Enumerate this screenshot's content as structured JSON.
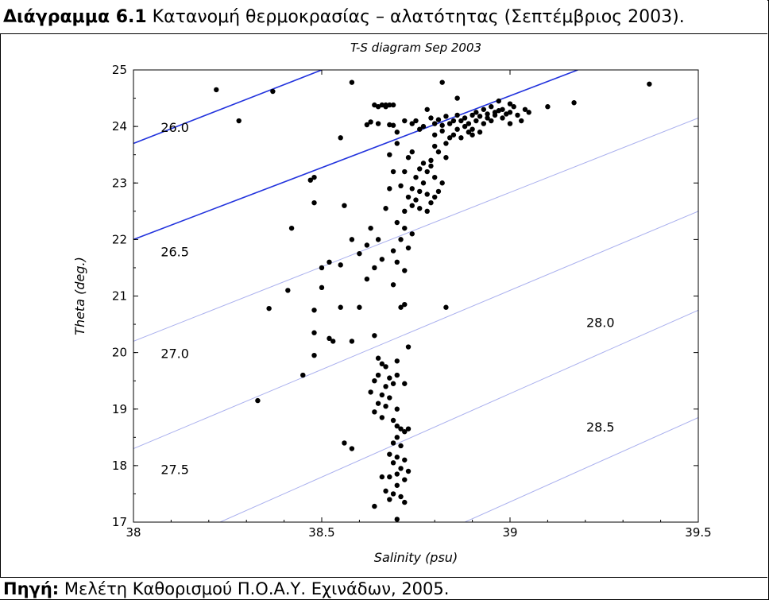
{
  "caption": {
    "label": "Διάγραμμα 6.1",
    "text": " Κατανομή θερμοκρασίας – αλατότητας (Σεπτέμβριος 2003)."
  },
  "source": {
    "label": "Πηγή:",
    "text": " Μελέτη Καθορισμού Π.Ο.Α.Υ. Εχινάδων, 2005."
  },
  "chart_data": {
    "type": "scatter",
    "title": "T-S diagram Sep 2003",
    "xlabel": "Salinity (psu)",
    "ylabel": "Theta (deg.)",
    "xlim": [
      38,
      39.5
    ],
    "ylim": [
      17,
      25
    ],
    "x_ticks": [
      38,
      38.5,
      39,
      39.5
    ],
    "x_tick_labels": [
      "38",
      "38.5",
      "39",
      "39.5"
    ],
    "y_ticks": [
      17,
      18,
      19,
      20,
      21,
      22,
      23,
      24,
      25
    ],
    "y_tick_labels": [
      "17",
      "18",
      "19",
      "20",
      "21",
      "22",
      "23",
      "24",
      "25"
    ],
    "grid": false,
    "point_color": "#000000",
    "density_color_highlight": "#2233dd",
    "density_color_light": "#aab0ee",
    "isopycnals": [
      {
        "label": "26.0",
        "line": [
          [
            38.0,
            23.7
          ],
          [
            38.5,
            25.0
          ]
        ],
        "label_at": [
          38.11,
          23.9
        ],
        "highlight": true
      },
      {
        "label": "26.5",
        "line": [
          [
            38.0,
            22.0
          ],
          [
            39.18,
            25.0
          ]
        ],
        "label_at": [
          38.11,
          21.7
        ],
        "highlight": true
      },
      {
        "label": "27.0",
        "line": [
          [
            38.0,
            20.2
          ],
          [
            39.5,
            24.15
          ]
        ],
        "label_at": [
          38.11,
          19.9
        ],
        "highlight": false
      },
      {
        "label": "27.5",
        "line": [
          [
            38.0,
            18.3
          ],
          [
            39.5,
            22.5
          ]
        ],
        "label_at": [
          38.11,
          17.85
        ],
        "highlight": false
      },
      {
        "label": "28.0",
        "line": [
          [
            38.23,
            17.0
          ],
          [
            39.5,
            20.75
          ]
        ],
        "label_at": [
          39.24,
          20.45
        ],
        "highlight": false
      },
      {
        "label": "28.5",
        "line": [
          [
            38.88,
            17.0
          ],
          [
            39.5,
            18.85
          ]
        ],
        "label_at": [
          39.24,
          18.6
        ],
        "highlight": false
      }
    ],
    "points": [
      [
        38.22,
        24.65
      ],
      [
        38.28,
        24.1
      ],
      [
        38.37,
        24.62
      ],
      [
        38.58,
        24.78
      ],
      [
        38.82,
        24.78
      ],
      [
        39.37,
        24.75
      ],
      [
        38.64,
        24.38
      ],
      [
        38.66,
        24.38
      ],
      [
        38.67,
        24.38
      ],
      [
        38.68,
        24.38
      ],
      [
        38.69,
        24.38
      ],
      [
        38.65,
        24.35
      ],
      [
        38.67,
        24.35
      ],
      [
        38.62,
        24.03
      ],
      [
        38.63,
        24.08
      ],
      [
        38.65,
        24.05
      ],
      [
        38.68,
        24.03
      ],
      [
        38.69,
        24.02
      ],
      [
        39.1,
        24.35
      ],
      [
        39.17,
        24.42
      ],
      [
        38.55,
        23.8
      ],
      [
        38.8,
        23.85
      ],
      [
        38.8,
        24.05
      ],
      [
        38.81,
        24.12
      ],
      [
        38.82,
        24.02
      ],
      [
        38.83,
        24.18
      ],
      [
        38.84,
        24.05
      ],
      [
        38.85,
        24.1
      ],
      [
        38.86,
        23.95
      ],
      [
        38.86,
        24.2
      ],
      [
        38.87,
        24.1
      ],
      [
        38.88,
        24.15
      ],
      [
        38.88,
        24.0
      ],
      [
        38.89,
        24.05
      ],
      [
        38.9,
        24.2
      ],
      [
        38.9,
        23.95
      ],
      [
        38.91,
        24.1
      ],
      [
        38.91,
        24.25
      ],
      [
        38.92,
        24.18
      ],
      [
        38.93,
        24.05
      ],
      [
        38.93,
        24.3
      ],
      [
        38.94,
        24.15
      ],
      [
        38.94,
        24.22
      ],
      [
        38.95,
        24.1
      ],
      [
        38.95,
        24.35
      ],
      [
        38.96,
        24.2
      ],
      [
        38.96,
        24.25
      ],
      [
        38.97,
        24.28
      ],
      [
        38.98,
        24.15
      ],
      [
        38.98,
        24.3
      ],
      [
        38.99,
        24.22
      ],
      [
        39.0,
        24.25
      ],
      [
        39.0,
        24.05
      ],
      [
        39.01,
        24.35
      ],
      [
        39.02,
        24.2
      ],
      [
        39.03,
        24.1
      ],
      [
        39.04,
        24.3
      ],
      [
        39.05,
        24.25
      ],
      [
        39.0,
        24.4
      ],
      [
        38.97,
        24.45
      ],
      [
        38.86,
        24.5
      ],
      [
        38.78,
        24.3
      ],
      [
        38.79,
        24.15
      ],
      [
        38.77,
        24.0
      ],
      [
        38.76,
        23.95
      ],
      [
        38.75,
        24.1
      ],
      [
        38.74,
        24.05
      ],
      [
        38.72,
        24.1
      ],
      [
        38.7,
        23.9
      ],
      [
        38.85,
        23.85
      ],
      [
        38.87,
        23.8
      ],
      [
        38.89,
        23.9
      ],
      [
        38.9,
        23.85
      ],
      [
        38.92,
        23.9
      ],
      [
        38.83,
        23.7
      ],
      [
        38.84,
        23.8
      ],
      [
        38.82,
        23.92
      ],
      [
        38.8,
        23.65
      ],
      [
        38.81,
        23.55
      ],
      [
        38.83,
        23.45
      ],
      [
        38.79,
        23.4
      ],
      [
        38.77,
        23.35
      ],
      [
        38.76,
        23.25
      ],
      [
        38.78,
        23.2
      ],
      [
        38.75,
        23.1
      ],
      [
        38.77,
        23.0
      ],
      [
        38.74,
        22.9
      ],
      [
        38.76,
        22.85
      ],
      [
        38.78,
        22.8
      ],
      [
        38.75,
        22.7
      ],
      [
        38.74,
        22.6
      ],
      [
        38.76,
        22.55
      ],
      [
        38.78,
        22.5
      ],
      [
        38.79,
        22.65
      ],
      [
        38.8,
        22.75
      ],
      [
        38.81,
        22.85
      ],
      [
        38.82,
        23.0
      ],
      [
        38.8,
        23.1
      ],
      [
        38.79,
        23.3
      ],
      [
        38.74,
        23.55
      ],
      [
        38.73,
        23.45
      ],
      [
        38.72,
        23.2
      ],
      [
        38.71,
        22.95
      ],
      [
        38.73,
        22.75
      ],
      [
        38.72,
        22.5
      ],
      [
        38.7,
        22.3
      ],
      [
        38.72,
        22.2
      ],
      [
        38.74,
        22.1
      ],
      [
        38.71,
        22.0
      ],
      [
        38.73,
        21.85
      ],
      [
        38.7,
        21.6
      ],
      [
        38.72,
        21.45
      ],
      [
        38.69,
        21.2
      ],
      [
        38.71,
        20.8
      ],
      [
        38.69,
        21.8
      ],
      [
        38.67,
        22.55
      ],
      [
        38.68,
        22.9
      ],
      [
        38.69,
        23.2
      ],
      [
        38.68,
        23.5
      ],
      [
        38.7,
        23.7
      ],
      [
        38.66,
        21.65
      ],
      [
        38.65,
        22.0
      ],
      [
        38.63,
        22.2
      ],
      [
        38.62,
        21.9
      ],
      [
        38.64,
        21.5
      ],
      [
        38.6,
        21.75
      ],
      [
        38.58,
        22.0
      ],
      [
        38.56,
        22.6
      ],
      [
        38.62,
        21.3
      ],
      [
        38.6,
        20.8
      ],
      [
        38.58,
        20.2
      ],
      [
        38.64,
        20.3
      ],
      [
        38.73,
        20.1
      ],
      [
        38.72,
        20.85
      ],
      [
        38.83,
        20.8
      ],
      [
        38.55,
        20.8
      ],
      [
        38.55,
        21.55
      ],
      [
        38.52,
        21.6
      ],
      [
        38.5,
        21.5
      ],
      [
        38.5,
        21.15
      ],
      [
        38.48,
        20.75
      ],
      [
        38.52,
        20.25
      ],
      [
        38.53,
        20.2
      ],
      [
        38.48,
        22.65
      ],
      [
        38.47,
        23.05
      ],
      [
        38.48,
        23.1
      ],
      [
        38.42,
        22.2
      ],
      [
        38.45,
        19.6
      ],
      [
        38.48,
        20.35
      ],
      [
        38.48,
        19.95
      ],
      [
        38.41,
        21.1
      ],
      [
        38.36,
        20.78
      ],
      [
        38.33,
        19.15
      ],
      [
        38.65,
        19.9
      ],
      [
        38.66,
        19.8
      ],
      [
        38.67,
        19.75
      ],
      [
        38.65,
        19.6
      ],
      [
        38.68,
        19.55
      ],
      [
        38.7,
        19.6
      ],
      [
        38.64,
        19.5
      ],
      [
        38.67,
        19.4
      ],
      [
        38.69,
        19.45
      ],
      [
        38.63,
        19.3
      ],
      [
        38.66,
        19.25
      ],
      [
        38.68,
        19.2
      ],
      [
        38.65,
        19.1
      ],
      [
        38.67,
        19.05
      ],
      [
        38.7,
        19.0
      ],
      [
        38.64,
        18.95
      ],
      [
        38.66,
        18.85
      ],
      [
        38.69,
        18.8
      ],
      [
        38.7,
        18.7
      ],
      [
        38.71,
        18.65
      ],
      [
        38.72,
        18.6
      ],
      [
        38.73,
        18.65
      ],
      [
        38.7,
        18.5
      ],
      [
        38.69,
        18.4
      ],
      [
        38.71,
        18.35
      ],
      [
        38.68,
        18.2
      ],
      [
        38.7,
        18.15
      ],
      [
        38.72,
        18.1
      ],
      [
        38.69,
        18.05
      ],
      [
        38.71,
        17.95
      ],
      [
        38.73,
        17.9
      ],
      [
        38.7,
        17.85
      ],
      [
        38.68,
        17.8
      ],
      [
        38.66,
        17.8
      ],
      [
        38.72,
        17.75
      ],
      [
        38.7,
        17.65
      ],
      [
        38.67,
        17.55
      ],
      [
        38.69,
        17.5
      ],
      [
        38.71,
        17.45
      ],
      [
        38.72,
        17.35
      ],
      [
        38.68,
        17.4
      ],
      [
        38.64,
        17.28
      ],
      [
        38.7,
        17.05
      ],
      [
        38.56,
        18.4
      ],
      [
        38.58,
        18.3
      ],
      [
        38.72,
        19.45
      ],
      [
        38.7,
        19.85
      ]
    ]
  }
}
